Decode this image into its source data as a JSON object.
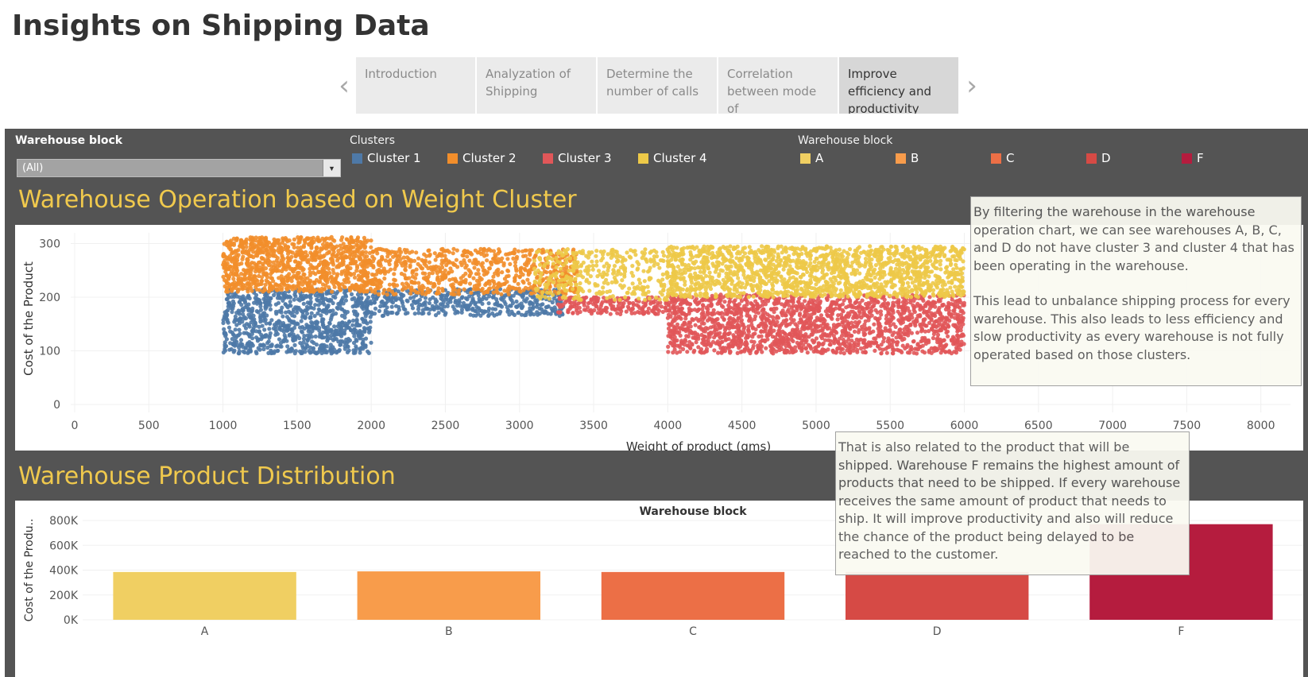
{
  "page": {
    "title": "Insights on Shipping Data"
  },
  "story_nav": {
    "prev_icon": "chevron-left-icon",
    "next_icon": "chevron-right-icon",
    "points": [
      {
        "label": "Introduction"
      },
      {
        "label": "Analyzation of Shipping"
      },
      {
        "label": "Determine the number of calls"
      },
      {
        "label": "Correlation between mode of"
      },
      {
        "label": "Improve efficiency and productivity"
      }
    ],
    "active_index": 4
  },
  "filter": {
    "label": "Warehouse block",
    "value": "(All)"
  },
  "cluster_legend": {
    "title": "Clusters",
    "items": [
      {
        "label": "Cluster 1",
        "color": "#4e79a7"
      },
      {
        "label": "Cluster 2",
        "color": "#f28e2b"
      },
      {
        "label": "Cluster 3",
        "color": "#e15759"
      },
      {
        "label": "Cluster 4",
        "color": "#edc948"
      }
    ]
  },
  "block_legend": {
    "title": "Warehouse block",
    "items": [
      {
        "label": "A",
        "color": "#f0cf62"
      },
      {
        "label": "B",
        "color": "#f89c4b"
      },
      {
        "label": "C",
        "color": "#ec6f46"
      },
      {
        "label": "D",
        "color": "#d64a45"
      },
      {
        "label": "F",
        "color": "#b51c3e"
      }
    ]
  },
  "sections": {
    "scatter_title": "Warehouse Operation based on Weight Cluster",
    "bar_title": "Warehouse Product Distribution"
  },
  "annotations": {
    "top": {
      "p1": "By filtering the warehouse in the warehouse operation chart, we can see warehouses A, B, C, and D do not have cluster 3 and cluster 4 that has been operating in the warehouse.",
      "p2": "This lead to unbalance shipping process for every warehouse. This also leads to less efficiency and slow productivity as every warehouse is not fully operated based on those clusters."
    },
    "bottom": {
      "p1": "That is also related to the product that will be shipped. Warehouse F remains the highest amount of products that need to be shipped. If every warehouse receives the same amount of product that needs to ship. It will improve productivity and also will reduce the chance of the product being delayed to be reached to the customer."
    }
  },
  "chart_data": [
    {
      "type": "scatter",
      "title": "Warehouse Operation based on Weight Cluster",
      "xlabel": "Weight of product (gms)",
      "ylabel": "Cost of the Product",
      "xlim": [
        0,
        8200
      ],
      "ylim": [
        0,
        320
      ],
      "x_ticks": [
        0,
        500,
        1000,
        1500,
        2000,
        2500,
        3000,
        3500,
        4000,
        4500,
        5000,
        5500,
        6000,
        6500,
        7000,
        7500,
        8000
      ],
      "y_ticks": [
        0,
        100,
        200,
        300
      ],
      "grid": true,
      "series": [
        {
          "name": "Cluster 1",
          "color": "#4e79a7",
          "regions": [
            {
              "x": [
                1000,
                2000
              ],
              "y": [
                95,
                215
              ],
              "count": 900
            },
            {
              "x": [
                2000,
                3300
              ],
              "y": [
                165,
                215
              ],
              "count": 450
            }
          ]
        },
        {
          "name": "Cluster 2",
          "color": "#f28e2b",
          "regions": [
            {
              "x": [
                1000,
                2000
              ],
              "y": [
                210,
                312
              ],
              "count": 1000
            },
            {
              "x": [
                2000,
                3400
              ],
              "y": [
                205,
                290
              ],
              "count": 700
            }
          ]
        },
        {
          "name": "Cluster 3",
          "color": "#e15759",
          "regions": [
            {
              "x": [
                3250,
                4000
              ],
              "y": [
                168,
                200
              ],
              "count": 200
            },
            {
              "x": [
                4000,
                6000
              ],
              "y": [
                95,
                205
              ],
              "count": 1800
            }
          ]
        },
        {
          "name": "Cluster 4",
          "color": "#edc948",
          "regions": [
            {
              "x": [
                3100,
                4000
              ],
              "y": [
                195,
                290
              ],
              "count": 350
            },
            {
              "x": [
                4000,
                6000
              ],
              "y": [
                200,
                295
              ],
              "count": 1600
            }
          ]
        }
      ]
    },
    {
      "type": "bar",
      "title": "Warehouse block",
      "xlabel": "",
      "ylabel": "Cost of the Produ..",
      "categories": [
        "A",
        "B",
        "C",
        "D",
        "F"
      ],
      "values": [
        385000,
        390000,
        385000,
        385000,
        770000
      ],
      "colors": [
        "#f0cf62",
        "#f89c4b",
        "#ec6f46",
        "#d64a45",
        "#b51c3e"
      ],
      "y_ticks": [
        0,
        200000,
        400000,
        600000,
        800000
      ],
      "y_tick_labels": [
        "0K",
        "200K",
        "400K",
        "600K",
        "800K"
      ],
      "ylim": [
        0,
        800000
      ]
    }
  ]
}
